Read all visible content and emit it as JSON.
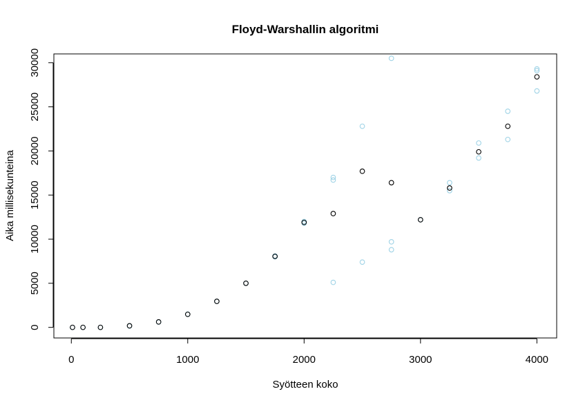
{
  "chart_data": {
    "type": "scatter",
    "title": "Floyd-Warshallin algoritmi",
    "xlabel": "Syötteen koko",
    "ylabel": "Aika millisekunteina",
    "xlim": [
      -150,
      4170
    ],
    "ylim": [
      -1200,
      31000
    ],
    "x_ticks": [
      0,
      1000,
      2000,
      3000,
      4000
    ],
    "y_ticks": [
      0,
      5000,
      10000,
      15000,
      20000,
      25000,
      30000
    ],
    "x_tick_labels": [
      "0",
      "1000",
      "2000",
      "3000",
      "4000"
    ],
    "y_tick_labels": [
      "0",
      "5000",
      "10000",
      "15000",
      "20000",
      "25000",
      "30000"
    ],
    "grid": false,
    "series": [
      {
        "color": "#9fd3e6",
        "points": [
          [
            10,
            0
          ],
          [
            100,
            0
          ],
          [
            250,
            0
          ],
          [
            500,
            150
          ],
          [
            750,
            600
          ],
          [
            1000,
            1500
          ],
          [
            1250,
            2950
          ],
          [
            1500,
            5000
          ],
          [
            1750,
            8000
          ],
          [
            1750,
            8100
          ],
          [
            2000,
            11800
          ],
          [
            2000,
            12000
          ],
          [
            2250,
            5100
          ],
          [
            2250,
            16700
          ],
          [
            2250,
            17000
          ],
          [
            2500,
            7400
          ],
          [
            2500,
            22800
          ],
          [
            2750,
            8800
          ],
          [
            2750,
            9700
          ],
          [
            2750,
            30500
          ],
          [
            3000,
            12200
          ],
          [
            3250,
            15500
          ],
          [
            3250,
            16400
          ],
          [
            3500,
            19200
          ],
          [
            3500,
            20900
          ],
          [
            3750,
            21300
          ],
          [
            3750,
            24500
          ],
          [
            4000,
            26800
          ],
          [
            4000,
            29100
          ],
          [
            4000,
            29300
          ]
        ]
      },
      {
        "color": "#000000",
        "points": [
          [
            10,
            0
          ],
          [
            100,
            0
          ],
          [
            250,
            0
          ],
          [
            500,
            180
          ],
          [
            750,
            620
          ],
          [
            1000,
            1480
          ],
          [
            1250,
            2950
          ],
          [
            1500,
            5000
          ],
          [
            1750,
            8050
          ],
          [
            2000,
            11900
          ],
          [
            2250,
            12900
          ],
          [
            2500,
            17700
          ],
          [
            2750,
            16400
          ],
          [
            3000,
            12200
          ],
          [
            3250,
            15800
          ],
          [
            3500,
            19900
          ],
          [
            3750,
            22800
          ],
          [
            4000,
            28400
          ]
        ]
      }
    ]
  }
}
